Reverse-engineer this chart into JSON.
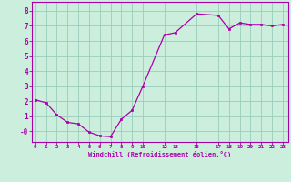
{
  "x": [
    0,
    1,
    2,
    3,
    4,
    5,
    6,
    7,
    8,
    9,
    10,
    12,
    13,
    15,
    17,
    18,
    19,
    20,
    21,
    22,
    23
  ],
  "y": [
    2.1,
    1.9,
    1.1,
    0.6,
    0.5,
    -0.05,
    -0.3,
    -0.35,
    0.8,
    1.4,
    3.0,
    6.4,
    6.55,
    7.8,
    7.7,
    6.8,
    7.2,
    7.1,
    7.1,
    7.0,
    7.1
  ],
  "line_color": "#aa00aa",
  "marker_color": "#aa00aa",
  "bg_color": "#cceedd",
  "grid_color": "#99ccbb",
  "xlabel": "Windchill (Refroidissement éolien,°C)",
  "xlabel_color": "#aa00aa",
  "xticks": [
    0,
    1,
    2,
    3,
    4,
    5,
    6,
    7,
    8,
    9,
    10,
    12,
    13,
    15,
    17,
    18,
    19,
    20,
    21,
    22,
    23
  ],
  "xtick_labels": [
    "0",
    "1",
    "2",
    "3",
    "4",
    "5",
    "6",
    "7",
    "8",
    "9",
    "10",
    "12",
    "13",
    "15",
    "17",
    "18",
    "19",
    "20",
    "21",
    "22",
    "23"
  ],
  "yticks": [
    0,
    1,
    2,
    3,
    4,
    5,
    6,
    7,
    8
  ],
  "ytick_labels": [
    "-0",
    "1",
    "2",
    "3",
    "4",
    "5",
    "6",
    "7",
    "8"
  ],
  "ylim": [
    -0.7,
    8.6
  ],
  "xlim": [
    -0.3,
    23.5
  ],
  "tick_color": "#aa00aa",
  "spine_color": "#aa00aa"
}
